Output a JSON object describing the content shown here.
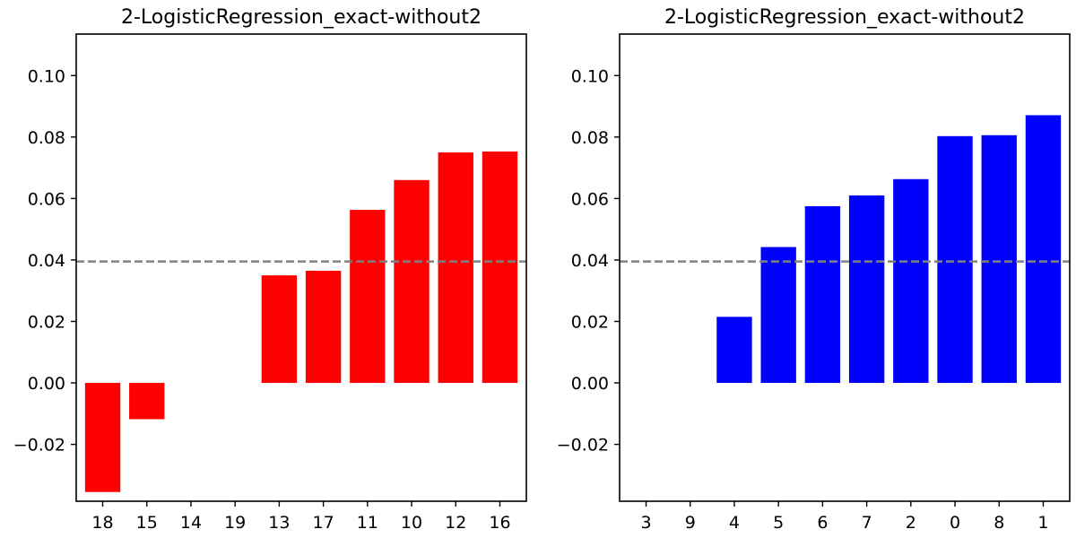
{
  "chart_data": [
    {
      "type": "bar",
      "title": "2-LogisticRegression_exact-without2",
      "xlabel": "",
      "ylabel": "",
      "categories": [
        "18",
        "15",
        "14",
        "19",
        "13",
        "17",
        "11",
        "10",
        "12",
        "16"
      ],
      "values": [
        -0.0355,
        -0.0118,
        0,
        0,
        0.035,
        0.0365,
        0.0563,
        0.066,
        0.075,
        0.0753
      ],
      "bar_color": "#ff0000",
      "ylim": [
        -0.0385,
        0.1135
      ],
      "yticks": [
        -0.02,
        0.0,
        0.02,
        0.04,
        0.06,
        0.08,
        0.1
      ],
      "ytick_labels": [
        "−0.02",
        "0.00",
        "0.02",
        "0.04",
        "0.06",
        "0.08",
        "0.10"
      ],
      "reference_line": {
        "y": 0.0395,
        "style": "dashed",
        "color": "#808080"
      },
      "grid": false,
      "legend": "none"
    },
    {
      "type": "bar",
      "title": "2-LogisticRegression_exact-without2",
      "xlabel": "",
      "ylabel": "",
      "categories": [
        "3",
        "9",
        "4",
        "5",
        "6",
        "7",
        "2",
        "0",
        "8",
        "1"
      ],
      "values": [
        0,
        0,
        0.0215,
        0.0442,
        0.0575,
        0.061,
        0.0663,
        0.0803,
        0.0806,
        0.0871
      ],
      "bar_color": "#0000ff",
      "ylim": [
        -0.0385,
        0.1135
      ],
      "yticks": [
        -0.02,
        0.0,
        0.02,
        0.04,
        0.06,
        0.08,
        0.1
      ],
      "ytick_labels": [
        "−0.02",
        "0.00",
        "0.02",
        "0.04",
        "0.06",
        "0.08",
        "0.10"
      ],
      "reference_line": {
        "y": 0.0395,
        "style": "dashed",
        "color": "#808080"
      },
      "grid": false,
      "legend": "none"
    }
  ]
}
